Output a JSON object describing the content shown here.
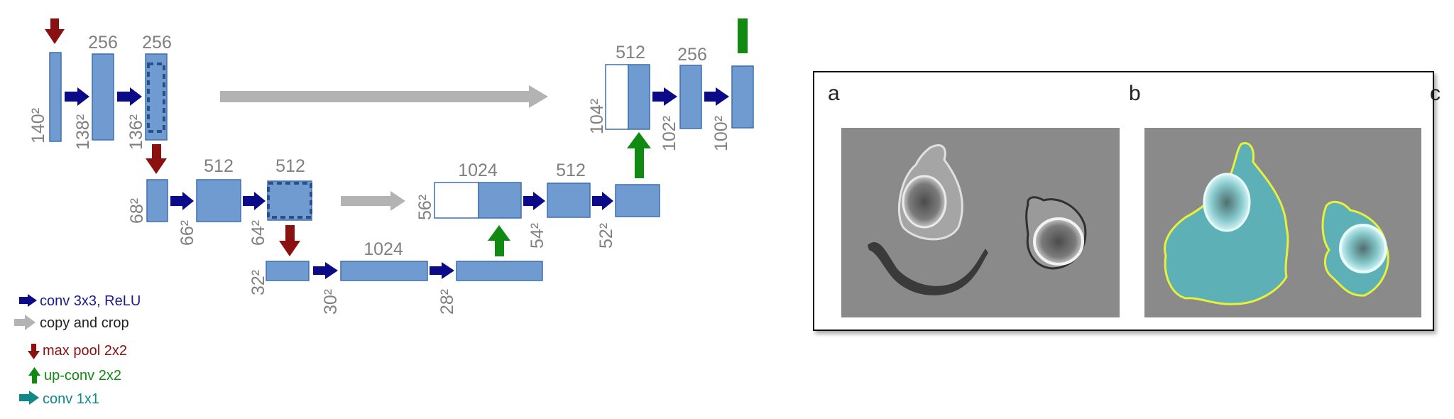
{
  "diagram": {
    "channel_labels": {
      "c1b": "256",
      "c1c": "256",
      "c2b": "512",
      "c2c": "512",
      "c3b": "1024",
      "d2a": "1024",
      "d2b": "512",
      "d1a": "512",
      "d1b": "256"
    },
    "size_labels": {
      "s140": "140²",
      "s138": "138²",
      "s136": "136²",
      "s68": "68²",
      "s66": "66²",
      "s64": "64²",
      "s32": "32²",
      "s30": "30²",
      "s28": "28²",
      "s56": "56²",
      "s54": "54²",
      "s52": "52²",
      "s104": "104²",
      "s102": "102²",
      "s100": "100²"
    }
  },
  "legend": {
    "conv": "conv 3x3, ReLU",
    "copy": "copy and crop",
    "pool": "max pool 2x2",
    "upconv": "up-conv 2x2",
    "conv1x1": "conv 1x1"
  },
  "panels": {
    "a_label": "a",
    "b_label": "b",
    "c_label": "c"
  },
  "colors": {
    "block_fill": "#6f9bd1",
    "block_stroke": "#3f6fae",
    "conv_arrow": "#0b0b8a",
    "copy_arrow": "#b3b3b3",
    "pool_arrow": "#8b1010",
    "upconv_arrow": "#118a11",
    "conv1x1_arrow": "#118888",
    "legend_conv_text": "#1a1a8c",
    "legend_copy_text": "#222222",
    "legend_pool_text": "#8b1010",
    "legend_upconv_text": "#118a11",
    "legend_conv1x1_text": "#118888",
    "segment_fill": "#38d0d8",
    "segment_outline": "#e7f03c"
  }
}
